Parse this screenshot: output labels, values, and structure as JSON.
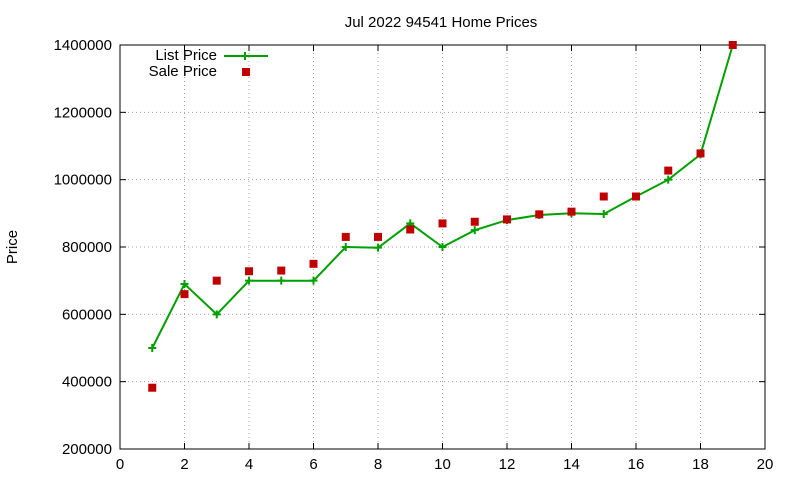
{
  "chart_data": {
    "type": "line",
    "title": "Jul 2022 94541 Home Prices",
    "ylabel": "Price",
    "xlabel": "",
    "xlim": [
      0,
      20
    ],
    "ylim": [
      200000,
      1400000
    ],
    "xticks": [
      0,
      2,
      4,
      6,
      8,
      10,
      12,
      14,
      16,
      18,
      20
    ],
    "yticks": [
      200000,
      400000,
      600000,
      800000,
      1000000,
      1200000,
      1400000
    ],
    "xtick_labels": [
      "0",
      "2",
      "4",
      "6",
      "8",
      "10",
      "12",
      "14",
      "16",
      "18",
      "20"
    ],
    "ytick_labels": [
      "200000",
      "400000",
      "600000",
      "800000",
      "1000000",
      "1200000",
      "1400000"
    ],
    "grid": true,
    "legend_position": "top-left",
    "series": [
      {
        "name": "List Price",
        "style": "line-plus",
        "color": "#00a000",
        "x": [
          1,
          2,
          3,
          4,
          5,
          6,
          7,
          8,
          9,
          10,
          11,
          12,
          13,
          14,
          15,
          16,
          17,
          18,
          19
        ],
        "values": [
          500000,
          690000,
          600000,
          700000,
          700000,
          700000,
          800000,
          798000,
          870000,
          800000,
          850000,
          880000,
          895000,
          900000,
          898000,
          950000,
          1000000,
          1075000,
          1400000
        ]
      },
      {
        "name": "Sale Price",
        "style": "square",
        "color": "#c00000",
        "x": [
          1,
          2,
          3,
          4,
          5,
          6,
          7,
          8,
          9,
          10,
          11,
          12,
          13,
          14,
          15,
          16,
          17,
          18,
          19
        ],
        "values": [
          382000,
          660000,
          700000,
          728000,
          730000,
          750000,
          830000,
          830000,
          852000,
          870000,
          875000,
          882000,
          897000,
          905000,
          950000,
          950000,
          1027000,
          1078000,
          1400000
        ]
      }
    ]
  }
}
